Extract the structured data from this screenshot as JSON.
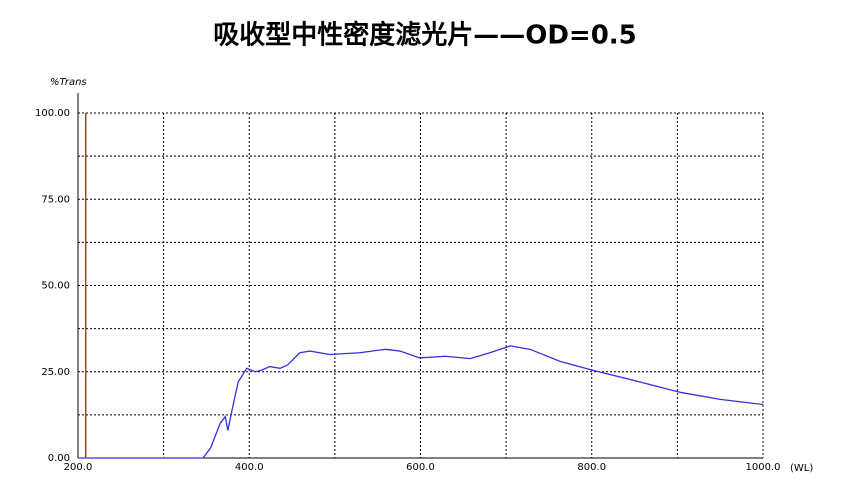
{
  "chart_data": {
    "type": "line",
    "title": "吸收型中性密度滤光片——OD=0.5",
    "y_label": "%Trans",
    "x_label": "(WL)",
    "x": [
      200,
      300,
      346,
      355,
      366,
      372,
      375,
      380,
      387,
      397,
      407,
      415,
      424,
      436,
      445,
      459,
      471,
      494,
      529,
      559,
      576,
      599,
      629,
      658,
      681,
      705,
      728,
      763,
      800,
      857,
      904,
      950,
      1000
    ],
    "series": [
      {
        "name": "%Trans",
        "color": "#3333dd",
        "values": [
          0,
          0,
          0,
          3,
          10,
          12,
          8,
          14,
          22,
          26,
          25,
          25.5,
          26.5,
          26,
          27,
          30.5,
          31,
          30,
          30.5,
          31.5,
          31,
          29,
          29.5,
          28.8,
          30.5,
          32.5,
          31.5,
          28,
          25.5,
          22,
          19,
          17,
          15.5
        ]
      }
    ],
    "marker_x": 209,
    "marker_color": "#e02020",
    "xlim": [
      200,
      1000
    ],
    "xticks": [
      {
        "value": 200,
        "label": "200.0"
      },
      {
        "value": 300,
        "label": null
      },
      {
        "value": 400,
        "label": "400.0"
      },
      {
        "value": 500,
        "label": null
      },
      {
        "value": 600,
        "label": "600.0"
      },
      {
        "value": 700,
        "label": null
      },
      {
        "value": 800,
        "label": "800.0"
      },
      {
        "value": 900,
        "label": null
      },
      {
        "value": 1000,
        "label": "1000.0"
      }
    ],
    "ylim": [
      0,
      100
    ],
    "yticks": [
      {
        "value": 0,
        "label": "0.00"
      },
      {
        "value": 12.5,
        "label": null
      },
      {
        "value": 25,
        "label": "25.00"
      },
      {
        "value": 37.5,
        "label": null
      },
      {
        "value": 50,
        "label": "50.00"
      },
      {
        "value": 62.5,
        "label": null
      },
      {
        "value": 75,
        "label": "75.00"
      },
      {
        "value": 87.5,
        "label": null
      },
      {
        "value": 100,
        "label": "100.00"
      }
    ],
    "grid": true
  }
}
